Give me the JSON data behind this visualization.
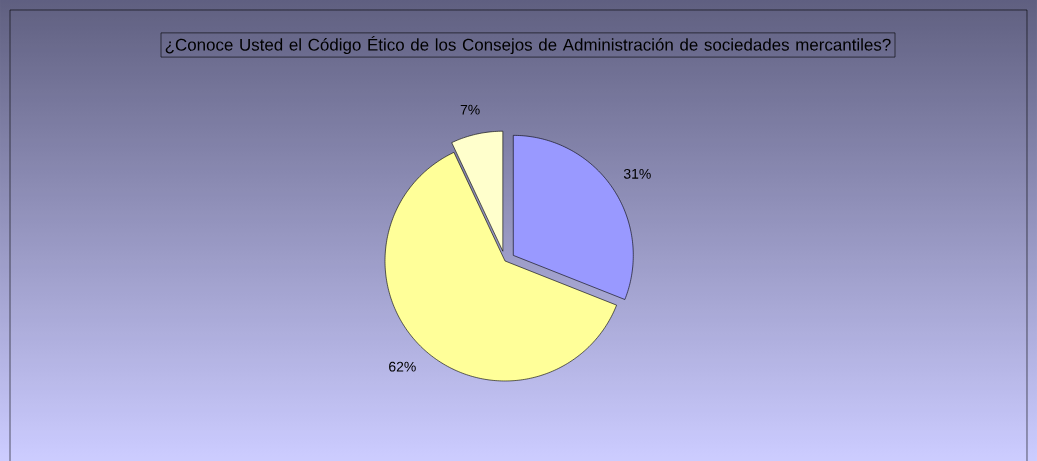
{
  "chart_data": {
    "type": "pie",
    "title": "¿Conoce Usted el Código Ético de los Consejos de Administración de sociedades mercantiles?",
    "categories": [
      null,
      null,
      null
    ],
    "values": [
      31,
      62,
      7
    ],
    "value_labels": [
      "31%",
      "62%",
      "7%"
    ],
    "colors": [
      "#9999ff",
      "#ffff99",
      "#ffffcc"
    ]
  }
}
